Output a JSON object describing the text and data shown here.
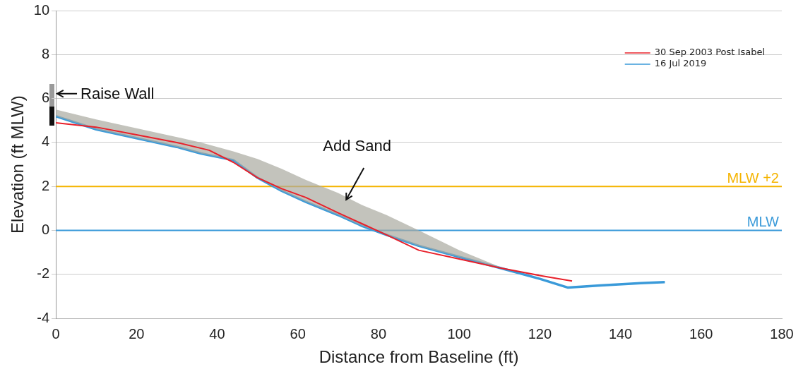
{
  "chart_data": {
    "type": "line",
    "xlabel": "Distance from Baseline (ft)",
    "ylabel": "Elevation (ft MLW)",
    "xlim": [
      0,
      180
    ],
    "xticks": [
      0,
      20,
      40,
      60,
      80,
      100,
      120,
      140,
      160,
      180
    ],
    "ylim": [
      -4,
      10
    ],
    "yticks": [
      -4,
      -2,
      0,
      2,
      4,
      6,
      8,
      10
    ],
    "grid": "y",
    "legend": "top right",
    "marker": "none",
    "line_style": "solid",
    "series": [
      {
        "name": "30 Sep 2003 Post Isabel",
        "color": "#e8202a",
        "x": [
          0,
          10,
          20,
          30,
          38,
          44,
          50,
          56,
          62,
          70,
          76,
          82,
          90,
          100,
          110,
          120,
          128
        ],
        "values": [
          4.9,
          4.7,
          4.35,
          4.0,
          3.65,
          3.1,
          2.4,
          1.9,
          1.5,
          0.8,
          0.3,
          -0.2,
          -0.9,
          -1.3,
          -1.7,
          -2.05,
          -2.3
        ]
      },
      {
        "name": "16 Jul 2019",
        "color": "#3a9ad9",
        "x": [
          0,
          10,
          20,
          30,
          36,
          44,
          50,
          56,
          62,
          70,
          76,
          82,
          90,
          100,
          110,
          120,
          127,
          135,
          145,
          151
        ],
        "values": [
          5.2,
          4.6,
          4.2,
          3.8,
          3.5,
          3.2,
          2.4,
          1.8,
          1.3,
          0.7,
          0.2,
          -0.2,
          -0.7,
          -1.2,
          -1.7,
          -2.2,
          -2.6,
          -2.5,
          -2.4,
          -2.35
        ],
        "lower": [
          5.2,
          4.6,
          4.2,
          3.8,
          3.5,
          3.2,
          2.4,
          1.8,
          1.3,
          0.7,
          0.2,
          -0.2,
          -0.7,
          -1.2,
          -1.7,
          null,
          null,
          null,
          null,
          null
        ],
        "upper": [
          5.5,
          5.05,
          4.65,
          4.25,
          4.0,
          3.6,
          3.25,
          2.8,
          2.3,
          1.7,
          1.15,
          0.7,
          0.0,
          -0.9,
          -1.65,
          null,
          null,
          null,
          null,
          null
        ]
      }
    ],
    "ref_lines": [
      {
        "axis": "y",
        "value": 2,
        "label": "MLW +2",
        "color": "#f5b400"
      },
      {
        "axis": "y",
        "value": 0,
        "label": "MLW",
        "color": "#3a9ad9"
      }
    ],
    "annotations": [
      "Raise Wall",
      {
        "text": "Add Sand",
        "x": 72,
        "y": 1.4
      }
    ]
  }
}
